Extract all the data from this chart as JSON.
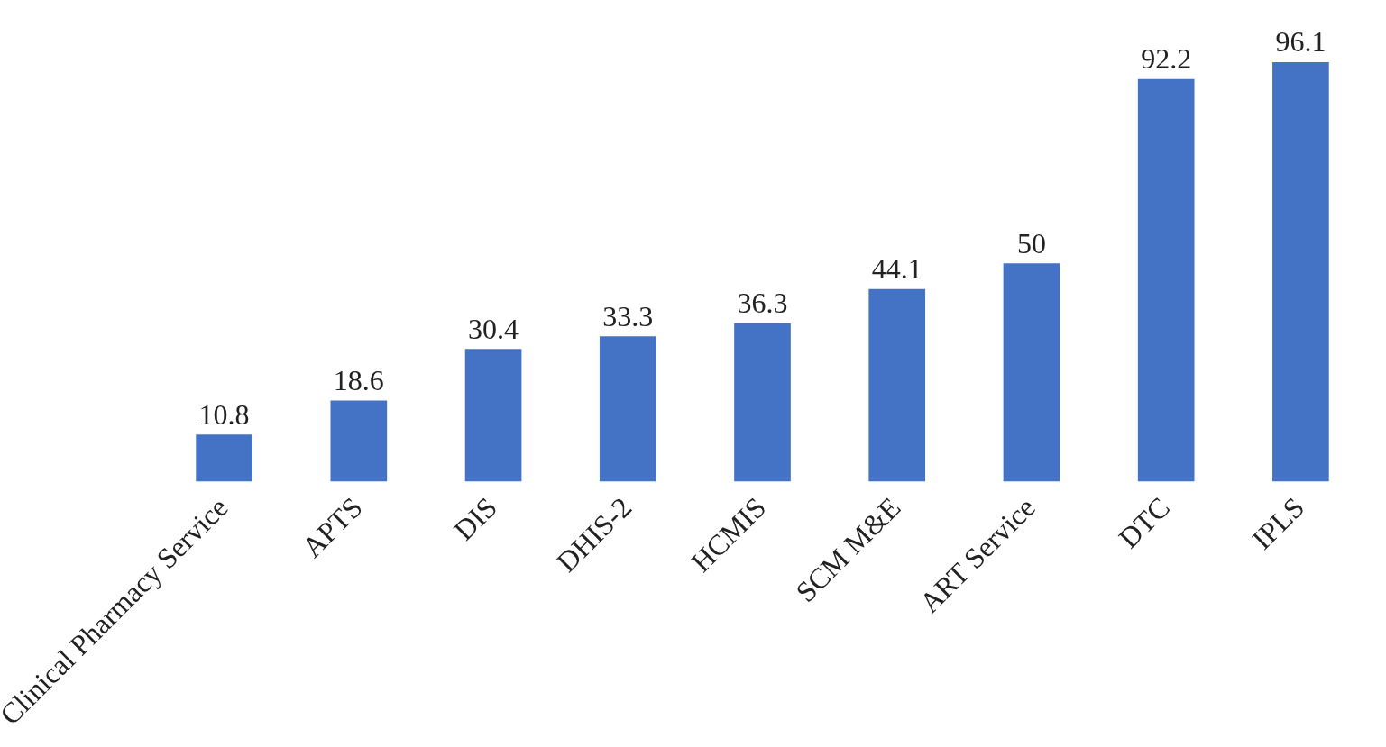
{
  "chart_data": {
    "type": "bar",
    "categories": [
      "Clinical Pharmacy Service",
      "APTS",
      "DIS",
      "DHIS-2",
      "HCMIS",
      "SCM M&E",
      "ART Service",
      "DTC",
      "IPLS"
    ],
    "values": [
      10.8,
      18.6,
      30.4,
      33.3,
      36.3,
      44.1,
      50,
      92.2,
      96.1
    ],
    "color": "#4472c4",
    "data_labels": true,
    "relative": false
  }
}
